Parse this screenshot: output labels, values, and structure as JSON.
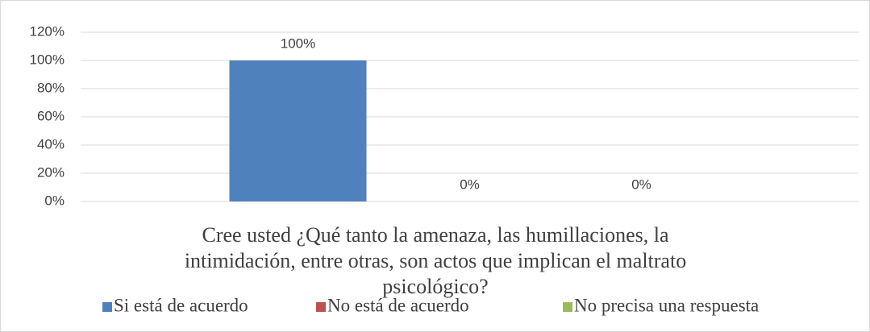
{
  "chart_data": {
    "type": "bar",
    "categories": [
      "Cree usted ¿Qué tanto la  amenaza, las humillaciones, la intimidación, entre otras, son actos que implican el maltrato psicológico?"
    ],
    "series": [
      {
        "name": "Si está de acuerdo",
        "color": "#4f81bd",
        "values": [
          100
        ],
        "value_labels": [
          "100%"
        ]
      },
      {
        "name": "No está de acuerdo",
        "color": "#c0504d",
        "values": [
          0
        ],
        "value_labels": [
          "0%"
        ]
      },
      {
        "name": "No precisa una respuesta",
        "color": "#9bbb59",
        "values": [
          0
        ],
        "value_labels": [
          "0%"
        ]
      }
    ],
    "ylim": [
      0,
      120
    ],
    "yticks": [
      {
        "value": 0,
        "label": "0%"
      },
      {
        "value": 20,
        "label": "20%"
      },
      {
        "value": 40,
        "label": "40%"
      },
      {
        "value": 60,
        "label": "60%"
      },
      {
        "value": 80,
        "label": "80%"
      },
      {
        "value": 100,
        "label": "100%"
      },
      {
        "value": 120,
        "label": "120%"
      }
    ],
    "grid": true,
    "legend": "bottom"
  }
}
